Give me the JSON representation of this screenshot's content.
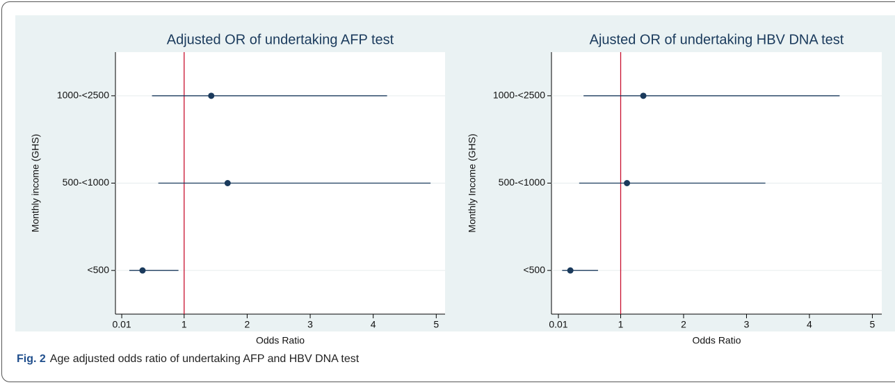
{
  "chart_data": [
    {
      "type": "forest",
      "title": "Adjusted OR of undertaking AFP test",
      "x_label": "Odds Ratio",
      "y_label": "Monthly income (GHS)",
      "categories": [
        "1000-<2500",
        "500-<1000",
        "<500"
      ],
      "values": [
        1.43,
        1.69,
        0.34
      ],
      "lower": [
        0.49,
        0.59,
        0.13
      ],
      "upper": [
        4.22,
        4.91,
        0.91
      ],
      "xlim": [
        -0.09,
        5.14
      ],
      "xticks": [
        0.01,
        1,
        2,
        3,
        4,
        5
      ],
      "refline": 1,
      "color": "#1a3a5c",
      "refline_color": "#c8102e",
      "grid": true
    },
    {
      "type": "forest",
      "title": "Ajusted OR of undertaking HBV DNA test",
      "x_label": "Odds Ratio",
      "y_label": "Monthly Income (GHS)",
      "categories": [
        "1000-<2500",
        "500-<1000",
        "<500"
      ],
      "values": [
        1.36,
        1.1,
        0.2
      ],
      "lower": [
        0.41,
        0.34,
        0.07
      ],
      "upper": [
        4.48,
        3.3,
        0.64
      ],
      "xlim": [
        -0.1,
        5.15
      ],
      "xticks": [
        0.01,
        1,
        2,
        3,
        4,
        5
      ],
      "refline": 1,
      "color": "#1a3a5c",
      "refline_color": "#c8102e",
      "grid": true
    }
  ],
  "caption": {
    "label": "Fig. 2",
    "text": "Age adjusted odds ratio of undertaking AFP and HBV DNA test"
  }
}
